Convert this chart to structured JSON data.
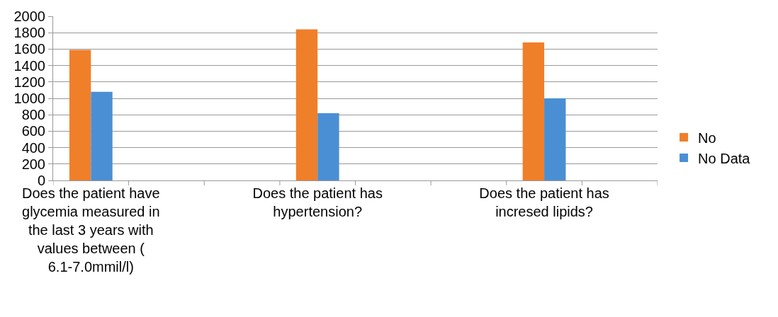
{
  "chart_data": {
    "type": "bar",
    "categories": [
      "Does the patient have glycemia measured in the last 3 years with values between ( 6.1-7.0mmil/l)",
      null,
      null,
      "Does the patient has hypertension?",
      null,
      null,
      "Does the patient has incresed lipids?",
      null
    ],
    "series": [
      {
        "name": "No",
        "color": "#f07f2a",
        "values": [
          1590,
          null,
          null,
          1840,
          null,
          null,
          1680,
          null
        ]
      },
      {
        "name": "No Data",
        "color": "#4a8fd4",
        "values": [
          1080,
          null,
          null,
          820,
          null,
          null,
          1000,
          null
        ]
      }
    ],
    "ylim": [
      0,
      2000
    ],
    "yticks": [
      0,
      200,
      400,
      600,
      800,
      1000,
      1200,
      1400,
      1600,
      1800,
      2000
    ],
    "grid": "y",
    "legend": "right"
  }
}
